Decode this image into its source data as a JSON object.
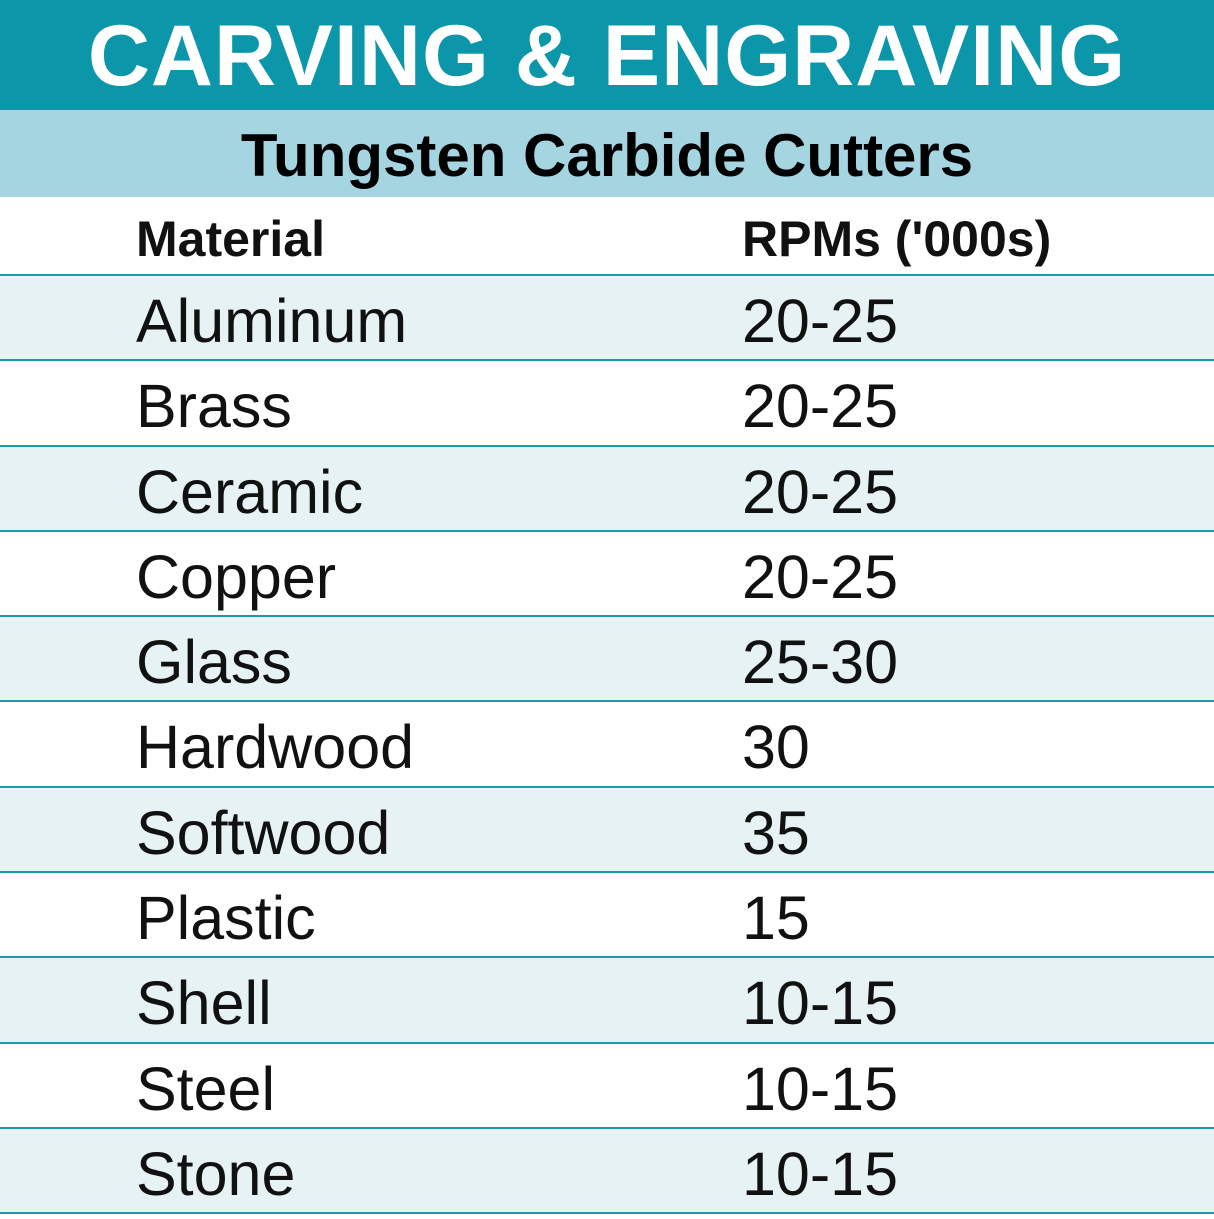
{
  "title": "CARVING & ENGRAVING",
  "subtitle": "Tungsten Carbide Cutters",
  "colors": {
    "banner": "#0b97a9",
    "subtitle_band": "#a5d5e0",
    "row_alt": "#e7f2f4",
    "divider": "#1a9aab"
  },
  "table": {
    "headers": [
      "Material",
      "RPMs ('000s)"
    ],
    "rows": [
      [
        "Aluminum",
        "20-25"
      ],
      [
        "Brass",
        "20-25"
      ],
      [
        "Ceramic",
        "20-25"
      ],
      [
        "Copper",
        "20-25"
      ],
      [
        "Glass",
        "25-30"
      ],
      [
        "Hardwood",
        "30"
      ],
      [
        "Softwood",
        "35"
      ],
      [
        "Plastic",
        "15"
      ],
      [
        "Shell",
        "10-15"
      ],
      [
        "Steel",
        "10-15"
      ],
      [
        "Stone",
        "10-15"
      ]
    ]
  }
}
